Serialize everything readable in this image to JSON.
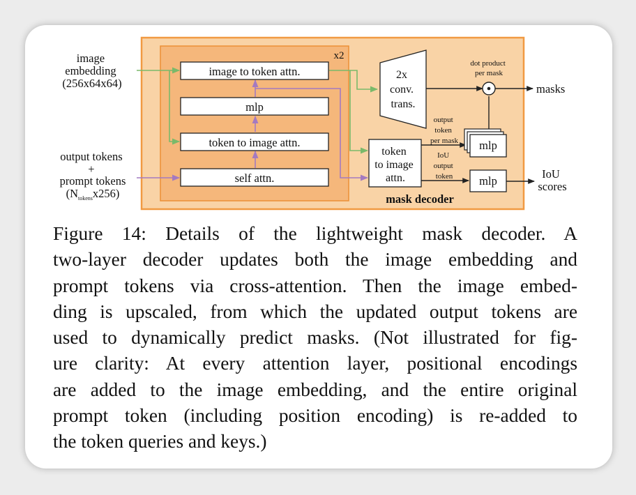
{
  "diagram": {
    "inputs": {
      "image_embedding": [
        "image",
        "embedding",
        "(256x64x64)"
      ],
      "output_tokens": [
        "output tokens",
        "+",
        "prompt tokens"
      ],
      "tokens_shape": {
        "pre": "(N",
        "sub": "tokens",
        "post": "x256)"
      }
    },
    "repeat_label": "x2",
    "blocks": {
      "image_to_token": "image to token attn.",
      "mlp": "mlp",
      "token_to_image": "token to image attn.",
      "self_attn": "self attn."
    },
    "conv": [
      "2x",
      "conv.",
      "trans."
    ],
    "final_attn": [
      "token",
      "to image",
      "attn."
    ],
    "dot_product": [
      "dot product",
      "per mask"
    ],
    "output_token_per_mask": [
      "output",
      "token",
      "per mask"
    ],
    "iou_output_token": [
      "IoU",
      "output",
      "token"
    ],
    "mlp_mask": "mlp",
    "mlp_iou": "mlp",
    "outputs": {
      "masks": "masks",
      "iou_scores": [
        "IoU",
        "scores"
      ]
    },
    "container_label": "mask decoder",
    "colors": {
      "outer_fill": "#f9d3a6",
      "outer_border": "#f19a42",
      "inner_fill": "#f5b77b",
      "green_arrow": "#7ab96a",
      "purple_arrow": "#a47ac0"
    }
  },
  "caption_lines": [
    "Figure 14:  Details of the lightweight mask decoder.  A",
    "two-layer decoder updates both the image embedding and",
    "prompt tokens via cross-attention.  Then the image embed-",
    "ding is upscaled, from which the updated output tokens are",
    "used to dynamically predict masks. (Not illustrated for fig-",
    "ure clarity:  At every attention layer, positional encodings",
    "are added to the image embedding, and the entire original",
    "prompt token (including position encoding) is re-added to",
    "the token queries and keys.)"
  ]
}
